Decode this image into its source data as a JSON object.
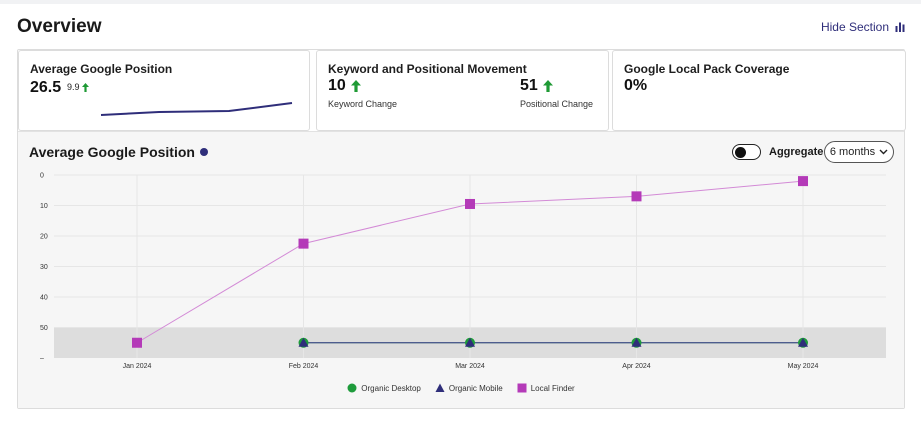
{
  "header": {
    "title": "Overview",
    "hide_section_label": "Hide Section"
  },
  "cards": {
    "avg_position": {
      "title": "Average Google Position",
      "value": "26.5",
      "delta": "9.9"
    },
    "movement": {
      "title": "Keyword and Positional Movement",
      "keyword_value": "10",
      "keyword_label": "Keyword Change",
      "positional_value": "51",
      "positional_label": "Positional Change"
    },
    "local_pack": {
      "title": "Google Local Pack Coverage",
      "value": "0%"
    }
  },
  "chart_section": {
    "title": "Average Google Position",
    "aggregate_label": "Aggregate",
    "period_selected": "6 months"
  },
  "colors": {
    "accent": "#2f2e7a",
    "up_arrow": "#1f9a35",
    "organic_desktop": "#1e9b3b",
    "organic_mobile": "#2f2e7a",
    "local_finder": "#b43ab8"
  },
  "chart_data": {
    "type": "line",
    "x": [
      "Jan 2024",
      "Feb 2024",
      "Mar 2024",
      "Apr 2024",
      "May 2024"
    ],
    "y_ticks": [
      "0",
      "10",
      "20",
      "30",
      "40",
      "50",
      "–"
    ],
    "ylim": [
      0,
      60
    ],
    "y_inverted": true,
    "shaded_band": [
      50,
      60
    ],
    "legend_position": "bottom",
    "series": [
      {
        "name": "Organic Desktop",
        "marker": "circle",
        "values": [
          null,
          55,
          55,
          55,
          55
        ]
      },
      {
        "name": "Organic Mobile",
        "marker": "triangle",
        "values": [
          null,
          55,
          55,
          55,
          55
        ]
      },
      {
        "name": "Local Finder",
        "marker": "square",
        "values": [
          55,
          22.5,
          9.5,
          7,
          2
        ]
      }
    ]
  }
}
